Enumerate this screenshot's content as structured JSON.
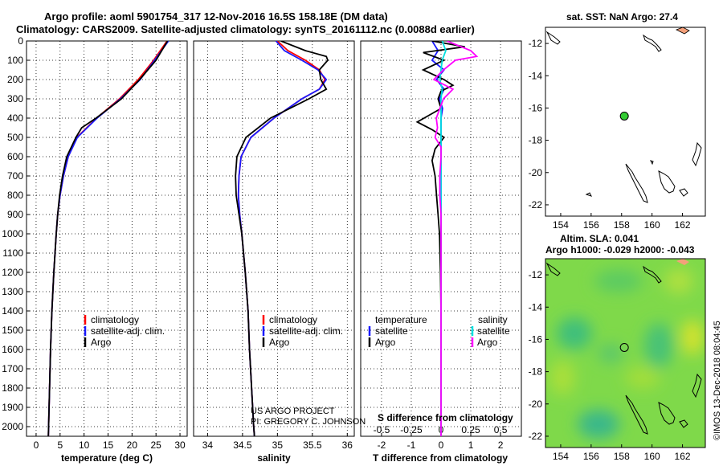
{
  "header": {
    "line1": "Argo profile: aoml 5901754_317 12-Nov-2016 16.5S 158.18E (DM data)",
    "line2": "Climatology: CARS2009. Satellite-adjusted climatology: synTS_20161112.nc (0.0088d earlier)"
  },
  "colors": {
    "climatology": "#ff0000",
    "satellite": "#1a1aff",
    "argo": "#000000",
    "sal_satellite": "#00e0e0",
    "sal_argo": "#ff00ff",
    "land": "#f4a07a",
    "marker": "#33cc33"
  },
  "credit": [
    "US ARGO PROJECT",
    "PI: GREGORY C. JOHNSON"
  ],
  "watermark": "©IMOS 13-Dec-2018 08:04:45",
  "chart_data": [
    {
      "id": "temperature",
      "type": "line",
      "xlabel": "temperature (deg C)",
      "ylabel": "",
      "xlim": [
        -2,
        31.5
      ],
      "ylim": [
        2050,
        0
      ],
      "xticks": [
        0,
        5,
        10,
        15,
        20,
        25,
        30
      ],
      "xtick_labels": [
        "0",
        "5",
        "10",
        "15",
        "20",
        "25",
        "30"
      ],
      "yticks": [
        0,
        100,
        200,
        300,
        400,
        500,
        600,
        700,
        800,
        900,
        1000,
        1100,
        1200,
        1300,
        1400,
        1500,
        1600,
        1700,
        1800,
        1900,
        2000
      ],
      "legend": {
        "position": "lower-center",
        "entries": [
          "climatology",
          "satellite-adj. clim.",
          "Argo"
        ]
      },
      "series": [
        {
          "name": "climatology",
          "color": "#ff0000",
          "depth": [
            0,
            100,
            200,
            300,
            400,
            500,
            600,
            700,
            800,
            900,
            1000,
            1200,
            1400,
            1600,
            1800,
            2000,
            2050
          ],
          "values": [
            27.3,
            24.5,
            21.3,
            17.4,
            12.6,
            8.5,
            6.7,
            5.7,
            5.0,
            4.5,
            4.2,
            3.7,
            3.3,
            3.0,
            2.8,
            2.6,
            2.55
          ]
        },
        {
          "name": "satellite-adj. clim.",
          "color": "#1a1aff",
          "depth": [
            0,
            100,
            200,
            300,
            400,
            500,
            600,
            700,
            800,
            900,
            1000,
            1200,
            1400,
            1600,
            1800,
            2000,
            2050
          ],
          "values": [
            27.6,
            24.7,
            21.7,
            17.6,
            12.7,
            8.6,
            6.7,
            5.7,
            5.0,
            4.5,
            4.2,
            3.7,
            3.3,
            3.0,
            2.8,
            2.6,
            2.55
          ]
        },
        {
          "name": "Argo",
          "color": "#000000",
          "depth": [
            0,
            100,
            200,
            300,
            400,
            450,
            500,
            600,
            700,
            800,
            900,
            1000,
            1200,
            1400,
            1600,
            1800,
            2000,
            2050
          ],
          "values": [
            27.4,
            25.0,
            21.6,
            17.8,
            12.5,
            9.5,
            8.3,
            6.4,
            5.5,
            4.9,
            4.5,
            4.2,
            3.7,
            3.3,
            3.0,
            2.8,
            2.6,
            2.55
          ]
        }
      ]
    },
    {
      "id": "salinity",
      "type": "line",
      "xlabel": "salinity",
      "ylabel": "",
      "xlim": [
        33.8,
        36.1
      ],
      "ylim": [
        2050,
        0
      ],
      "xticks": [
        34,
        34.5,
        35,
        35.5,
        36
      ],
      "xtick_labels": [
        "34",
        "34.5",
        "35",
        "35.5",
        "36"
      ],
      "legend": {
        "position": "lower-center",
        "entries": [
          "climatology",
          "satellite-adj. clim.",
          "Argo"
        ]
      },
      "series": [
        {
          "name": "climatology",
          "color": "#ff0000",
          "depth": [
            0,
            50,
            100,
            150,
            200,
            250,
            300,
            400,
            500,
            600,
            700,
            800,
            900,
            1000,
            1200,
            1400,
            1600,
            1800,
            2000,
            2050
          ],
          "values": [
            35.0,
            35.15,
            35.4,
            35.6,
            35.68,
            35.6,
            35.35,
            34.95,
            34.62,
            34.48,
            34.45,
            34.44,
            34.46,
            34.49,
            34.54,
            34.58,
            34.6,
            34.63,
            34.66,
            34.67
          ]
        },
        {
          "name": "satellite-adj. clim.",
          "color": "#1a1aff",
          "depth": [
            0,
            50,
            100,
            150,
            200,
            250,
            300,
            400,
            500,
            600,
            700,
            800,
            900,
            1000,
            1200,
            1400,
            1600,
            1800,
            2000,
            2050
          ],
          "values": [
            34.98,
            35.1,
            35.35,
            35.58,
            35.7,
            35.6,
            35.35,
            34.95,
            34.62,
            34.48,
            34.45,
            34.44,
            34.46,
            34.49,
            34.54,
            34.58,
            34.6,
            34.63,
            34.66,
            34.67
          ]
        },
        {
          "name": "Argo",
          "color": "#000000",
          "depth": [
            0,
            50,
            80,
            100,
            150,
            200,
            250,
            300,
            400,
            500,
            600,
            700,
            800,
            900,
            1000,
            1200,
            1400,
            1600,
            1800,
            2000,
            2050
          ],
          "values": [
            35.05,
            35.4,
            35.7,
            35.72,
            35.6,
            35.62,
            35.7,
            35.45,
            34.9,
            34.55,
            34.42,
            34.4,
            34.41,
            34.45,
            34.49,
            34.54,
            34.58,
            34.6,
            34.63,
            34.66,
            34.67
          ]
        }
      ]
    },
    {
      "id": "difference",
      "type": "line",
      "xlabel": "T difference from climatology",
      "top_label": "S difference from climatology",
      "xlim": [
        -2.7,
        2.7
      ],
      "ylim": [
        2050,
        0
      ],
      "xticks": [
        -2,
        -1,
        0,
        1,
        2
      ],
      "xtick_labels": [
        "-2",
        "-1",
        "0",
        "1",
        "2"
      ],
      "top_ticks": [
        -0.5,
        -0.25,
        0,
        0.25,
        0.5
      ],
      "top_tick_labels": [
        "-0.5",
        "-0.25",
        "0",
        "0.25",
        "0.5"
      ],
      "top_scale": 4,
      "legend": {
        "position": "lower-center",
        "temperature_title": "temperature",
        "salinity_title": "salinity",
        "entries_t": [
          "satellite",
          "Argo"
        ],
        "entries_s": [
          "satellite",
          "Argo"
        ]
      },
      "series": [
        {
          "name": "T satellite",
          "color": "#1a1aff",
          "depth": [
            0,
            50,
            100,
            150,
            200,
            250,
            300,
            350,
            400,
            500,
            600,
            700,
            800,
            900,
            1000,
            1200,
            1400,
            1600,
            1800,
            2000,
            2050
          ],
          "values": [
            -0.3,
            -0.1,
            -0.3,
            0.1,
            -0.15,
            0.1,
            -0.05,
            0.05,
            0.0,
            0.0,
            0.0,
            0.0,
            0.0,
            0.0,
            0.0,
            0.0,
            0.0,
            0.0,
            0.0,
            0.0,
            0.0
          ]
        },
        {
          "name": "T Argo",
          "color": "#000000",
          "depth": [
            0,
            30,
            60,
            100,
            150,
            200,
            230,
            260,
            300,
            350,
            420,
            460,
            500,
            560,
            620,
            700,
            800,
            900,
            1000,
            1200,
            1400,
            1600,
            1800,
            2000,
            2050
          ],
          "values": [
            -0.3,
            0.8,
            -0.6,
            0.1,
            -0.6,
            0.1,
            0.4,
            0.0,
            -0.1,
            0.0,
            -0.8,
            -0.3,
            0.1,
            -0.2,
            -0.3,
            -0.2,
            -0.15,
            -0.1,
            -0.05,
            -0.02,
            0.0,
            0.0,
            0.0,
            0.0,
            0.0
          ]
        },
        {
          "name": "S satellite",
          "color": "#00e0e0",
          "depth": [
            0,
            50,
            100,
            150,
            200,
            250,
            300,
            400,
            500,
            600,
            700,
            800,
            900,
            1000,
            1200,
            1400,
            1600,
            1800,
            2000,
            2050
          ],
          "values": [
            0.01,
            0.04,
            0.01,
            0.0,
            -0.01,
            0.01,
            0.0,
            0.0,
            0.0,
            0.0,
            0.0,
            0.0,
            0.0,
            0.0,
            0.0,
            0.0,
            0.0,
            0.0,
            0.0,
            0.0
          ]
        },
        {
          "name": "S Argo",
          "color": "#ff00ff",
          "depth": [
            0,
            50,
            80,
            100,
            150,
            200,
            250,
            300,
            400,
            450,
            500,
            550,
            600,
            700,
            800,
            900,
            1000,
            1200,
            1400,
            1600,
            1800,
            2000,
            2050
          ],
          "values": [
            0.05,
            0.25,
            0.3,
            0.12,
            0.02,
            -0.06,
            0.1,
            0.02,
            -0.04,
            -0.03,
            -0.05,
            0.0,
            0.0,
            -0.01,
            -0.01,
            0.0,
            0.0,
            0.0,
            0.0,
            0.0,
            0.0,
            0.0,
            0.0
          ]
        }
      ]
    },
    {
      "id": "map_sst",
      "type": "scatter",
      "title": "sat. SST: NaN Argo: 27.4",
      "xlim": [
        153,
        163.5
      ],
      "ylim": [
        -22.7,
        -11
      ],
      "xticks": [
        154,
        156,
        158,
        160,
        162
      ],
      "yticks": [
        -12,
        -14,
        -16,
        -18,
        -20,
        -22
      ],
      "points": [
        {
          "lon": 158.18,
          "lat": -16.5
        }
      ]
    },
    {
      "id": "map_sla",
      "type": "heatmap",
      "title1": "Altim. SLA: 0.041",
      "title2": "Argo h1000: -0.029 h2000: -0.043",
      "xlim": [
        153,
        163.5
      ],
      "ylim": [
        -22.7,
        -11
      ],
      "xticks": [
        154,
        156,
        158,
        160,
        162
      ],
      "yticks": [
        -12,
        -14,
        -16,
        -18,
        -20,
        -22
      ],
      "points": [
        {
          "lon": 158.18,
          "lat": -16.5
        }
      ]
    }
  ]
}
